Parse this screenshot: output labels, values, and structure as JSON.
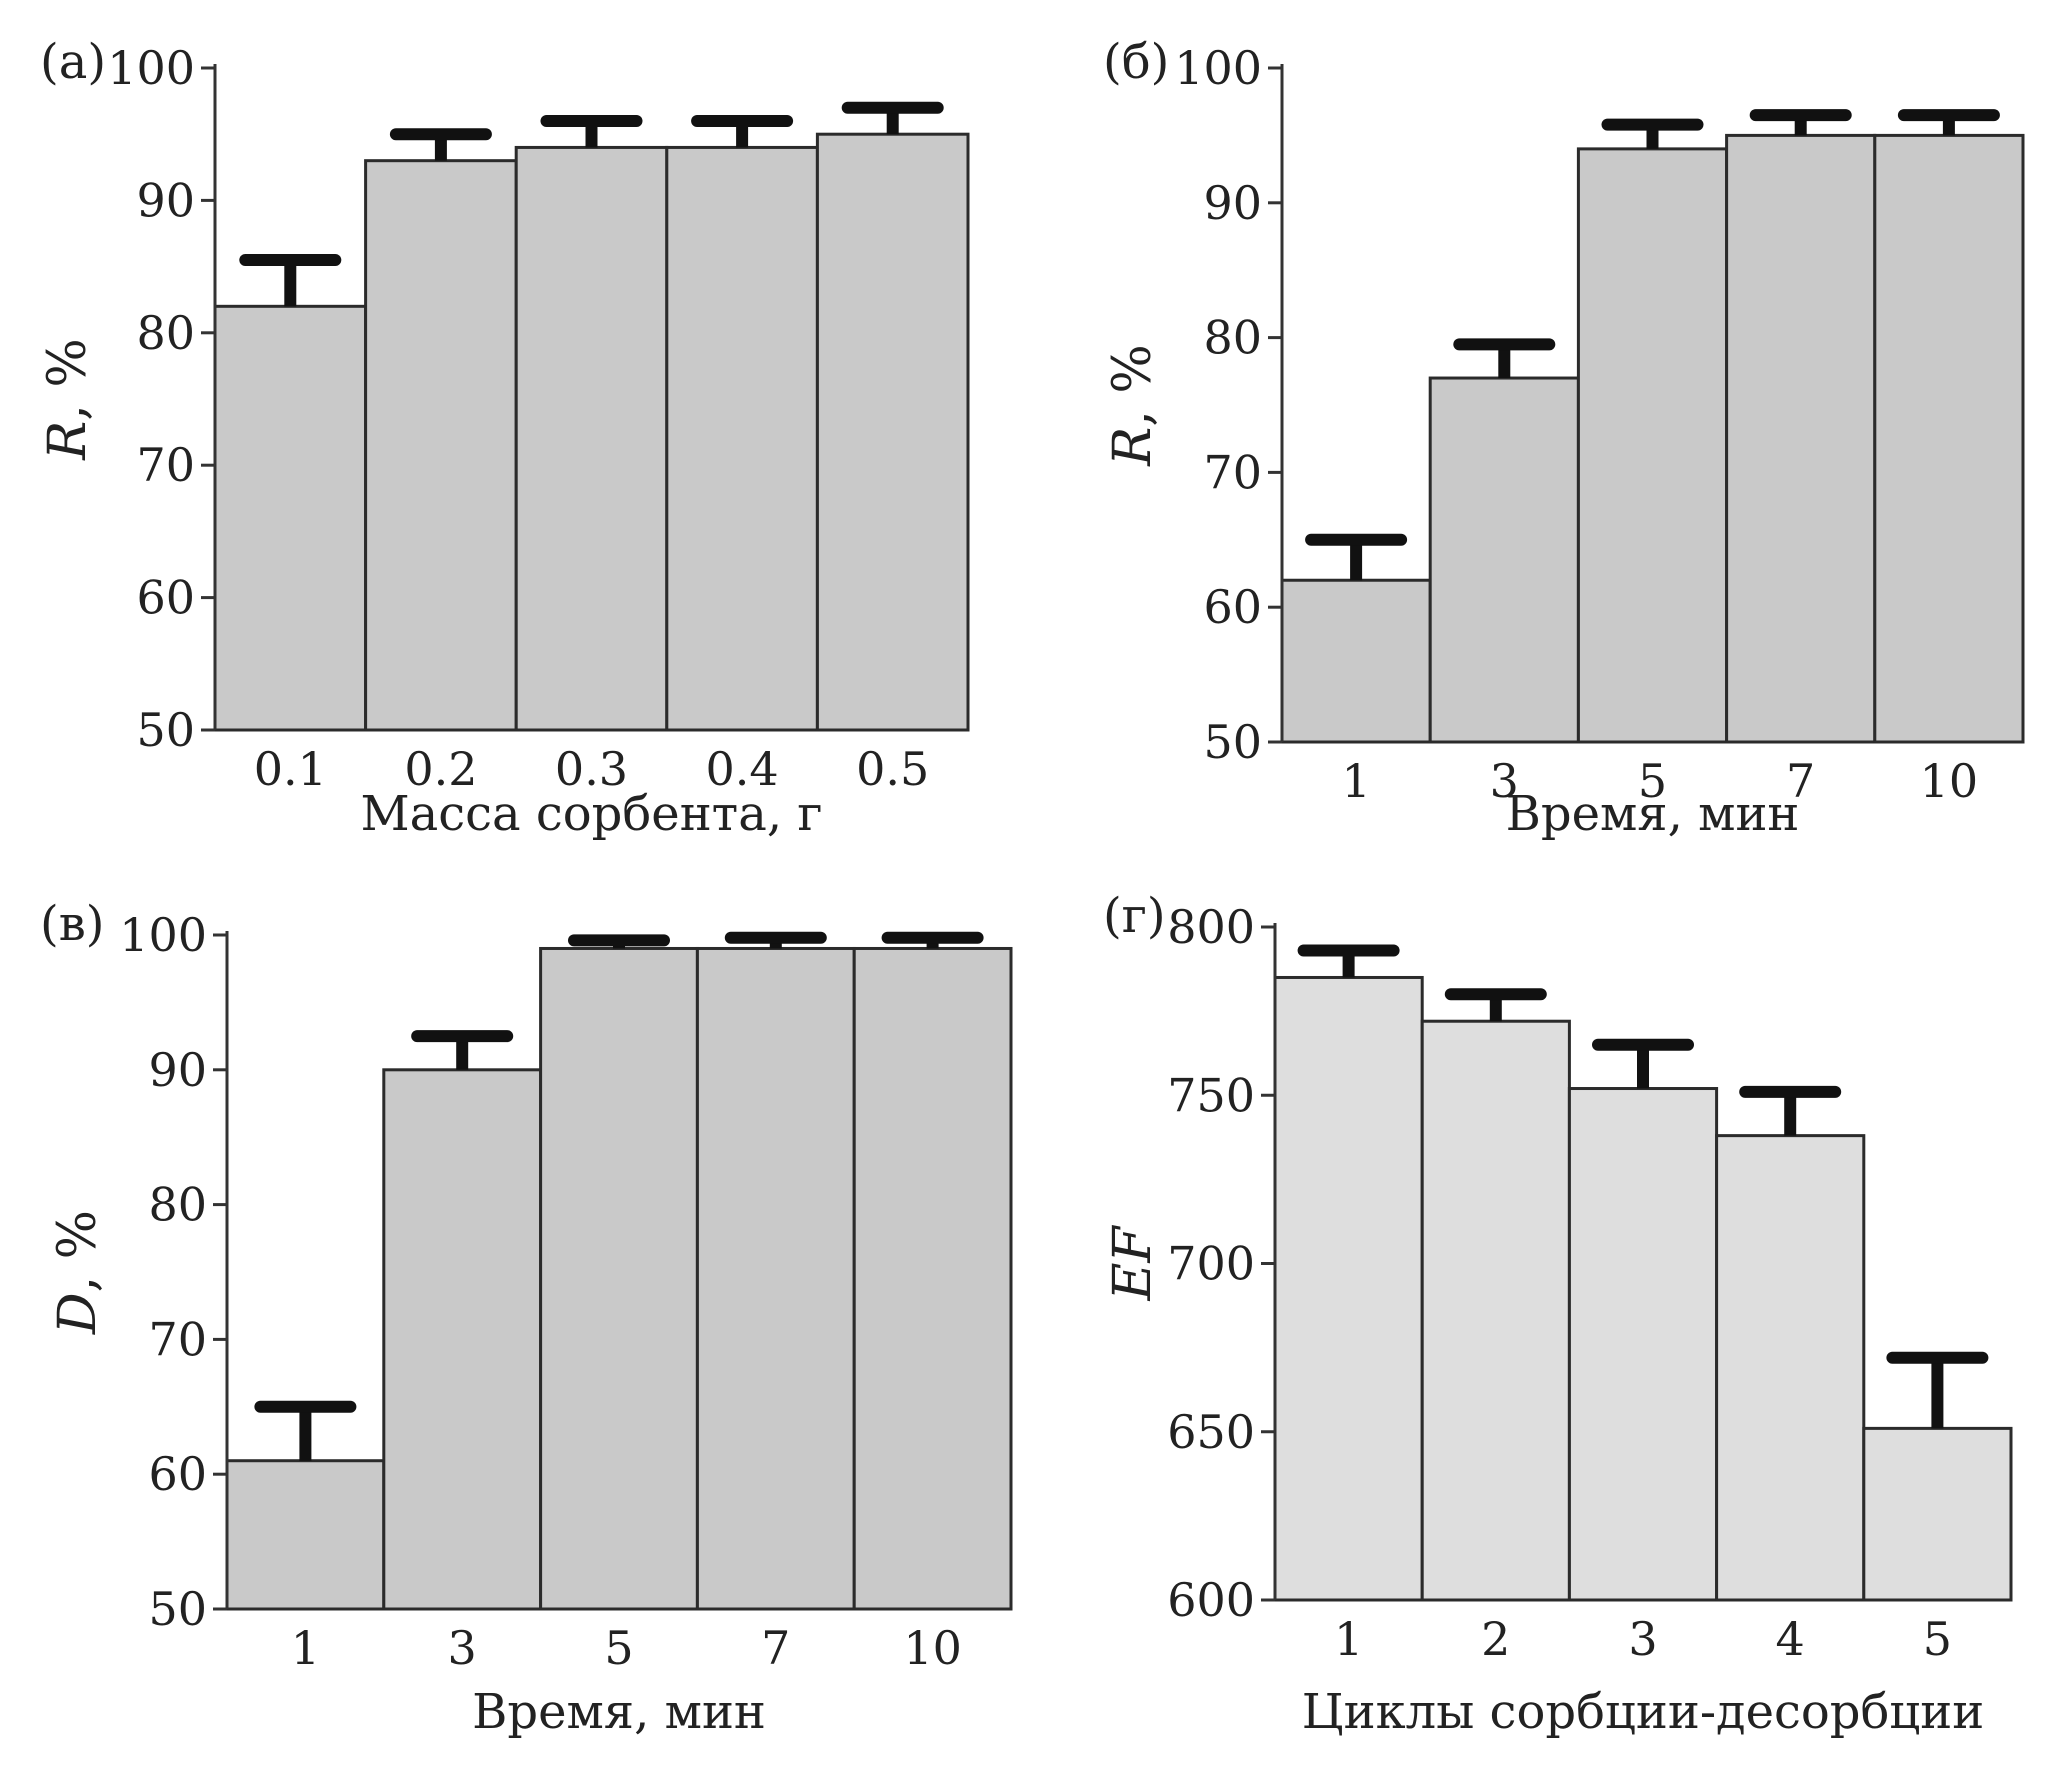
{
  "chart_data": [
    {
      "id": "a",
      "type": "bar",
      "panel_label": "(а)",
      "categories": [
        "0.1",
        "0.2",
        "0.3",
        "0.4",
        "0.5"
      ],
      "values": [
        82,
        93,
        94,
        94,
        95
      ],
      "error_tops": [
        85.5,
        95,
        96,
        96,
        97
      ],
      "xlabel": "Масса сорбента, г",
      "ylabel_main": "R",
      "ylabel_unit": ", %",
      "ylim": [
        50,
        100
      ],
      "yticks": [
        50,
        60,
        70,
        80,
        90,
        100
      ],
      "bar_color": "#c9c9c9",
      "grid": false
    },
    {
      "id": "b",
      "type": "bar",
      "panel_label": "(б)",
      "categories": [
        "1",
        "3",
        "5",
        "7",
        "10"
      ],
      "values": [
        62,
        77,
        94,
        95,
        95
      ],
      "error_tops": [
        65,
        79.5,
        95.8,
        96.5,
        96.5
      ],
      "xlabel": "Время, мин",
      "ylabel_main": "R",
      "ylabel_unit": ", %",
      "ylim": [
        50,
        100
      ],
      "yticks": [
        50,
        60,
        70,
        80,
        90,
        100
      ],
      "bar_color": "#c9c9c9",
      "grid": false
    },
    {
      "id": "c",
      "type": "bar",
      "panel_label": "(в)",
      "categories": [
        "1",
        "3",
        "5",
        "7",
        "10"
      ],
      "values": [
        61,
        90,
        99,
        99,
        99
      ],
      "error_tops": [
        65,
        92.5,
        99.6,
        99.8,
        99.8
      ],
      "xlabel": "Время, мин",
      "ylabel_main": "D",
      "ylabel_unit": ", %",
      "ylim": [
        50,
        100
      ],
      "yticks": [
        50,
        60,
        70,
        80,
        90,
        100
      ],
      "bar_color": "#c9c9c9",
      "grid": false
    },
    {
      "id": "d",
      "type": "bar",
      "panel_label": "(г)",
      "categories": [
        "1",
        "2",
        "3",
        "4",
        "5"
      ],
      "values": [
        785,
        772,
        752,
        738,
        651
      ],
      "error_tops": [
        793,
        780,
        765,
        751,
        672
      ],
      "xlabel": "Циклы сорбции-десорбции",
      "ylabel_main": "EF",
      "ylabel_unit": "",
      "ylim": [
        600,
        800
      ],
      "yticks": [
        600,
        650,
        700,
        750,
        800
      ],
      "bar_color": "#dedede",
      "grid": false
    }
  ]
}
